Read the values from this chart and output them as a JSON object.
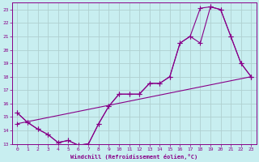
{
  "xlabel": "Windchill (Refroidissement éolien,°C)",
  "bg_color": "#c8eef0",
  "grid_color": "#aacccc",
  "line_color": "#880088",
  "xlim": [
    -0.5,
    23.5
  ],
  "ylim": [
    13,
    23.5
  ],
  "xticks": [
    0,
    1,
    2,
    3,
    4,
    5,
    6,
    7,
    8,
    9,
    10,
    11,
    12,
    13,
    14,
    15,
    16,
    17,
    18,
    19,
    20,
    21,
    22,
    23
  ],
  "yticks": [
    13,
    14,
    15,
    16,
    17,
    18,
    19,
    20,
    21,
    22,
    23
  ],
  "line1_x": [
    0,
    1,
    2,
    3,
    4,
    5,
    6,
    7,
    8,
    9,
    10,
    11,
    12,
    13,
    14,
    15,
    16,
    17,
    18,
    19,
    20,
    21,
    22,
    23
  ],
  "line1_y": [
    15.3,
    14.6,
    14.1,
    13.7,
    13.1,
    13.25,
    12.9,
    13.0,
    14.5,
    15.8,
    16.7,
    16.7,
    16.7,
    17.5,
    17.5,
    18.0,
    20.5,
    21.0,
    20.5,
    23.2,
    23.0,
    21.0,
    19.0,
    18.0
  ],
  "line2_x": [
    0,
    1,
    2,
    3,
    4,
    5,
    6,
    7,
    8,
    9,
    10,
    11,
    12,
    13,
    14,
    15,
    16,
    17,
    18,
    19,
    20,
    21,
    22,
    23
  ],
  "line2_y": [
    15.3,
    14.6,
    14.1,
    13.7,
    13.1,
    13.25,
    12.9,
    13.0,
    14.5,
    15.8,
    16.7,
    16.7,
    16.7,
    17.5,
    17.5,
    18.0,
    20.5,
    21.0,
    23.1,
    23.2,
    23.0,
    21.0,
    19.0,
    18.0
  ],
  "line3_x": [
    0,
    23
  ],
  "line3_y": [
    14.5,
    18.0
  ],
  "markersize": 2.5
}
